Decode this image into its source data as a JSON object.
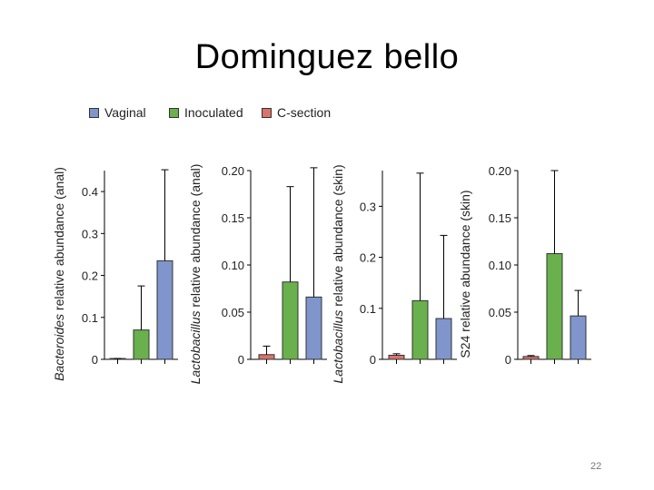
{
  "slide": {
    "title": "Dominguez bello",
    "page_number": "22"
  },
  "colors": {
    "Vaginal": "#7f95cb",
    "Inoculated": "#6ab04c",
    "C-section": "#d9736b"
  },
  "legend": [
    {
      "label": "Vaginal",
      "color": "#7f95cb"
    },
    {
      "label": "Inoculated",
      "color": "#6ab04c"
    },
    {
      "label": "C-section",
      "color": "#d9736b"
    }
  ],
  "chart_data": [
    {
      "type": "bar",
      "ylabel_italic": "Bacteroides",
      "ylabel_rest": " relative abundance (anal)",
      "ylim": [
        0,
        0.45
      ],
      "yticks": [
        0,
        0.1,
        0.2,
        0.3,
        0.4
      ],
      "ytick_labels": [
        "0",
        "0.1",
        "0.2",
        "0.3",
        "0.4"
      ],
      "categories": [
        "C-section",
        "Inoculated",
        "Vaginal"
      ],
      "values": [
        0.002,
        0.07,
        0.235
      ],
      "error_upper": [
        0.002,
        0.175,
        0.452
      ]
    },
    {
      "type": "bar",
      "ylabel_italic": "Lactobacillus",
      "ylabel_rest": " relative abundance (anal)",
      "ylim": [
        0,
        0.2
      ],
      "yticks": [
        0,
        0.05,
        0.1,
        0.15,
        0.2
      ],
      "ytick_labels": [
        "0",
        "0.05",
        "0.10",
        "0.15",
        "0.20"
      ],
      "categories": [
        "C-section",
        "Inoculated",
        "Vaginal"
      ],
      "values": [
        0.005,
        0.082,
        0.066
      ],
      "error_upper": [
        0.014,
        0.183,
        0.203
      ]
    },
    {
      "type": "bar",
      "ylabel_italic": "Lactobacillus",
      "ylabel_rest": " relative abundance (skin)",
      "ylim": [
        0,
        0.37
      ],
      "yticks": [
        0,
        0.1,
        0.2,
        0.3
      ],
      "ytick_labels": [
        "0",
        "0.1",
        "0.2",
        "0.3"
      ],
      "categories": [
        "C-section",
        "Inoculated",
        "Vaginal"
      ],
      "values": [
        0.008,
        0.115,
        0.08
      ],
      "error_upper": [
        0.011,
        0.365,
        0.243
      ]
    },
    {
      "type": "bar",
      "ylabel_italic": "",
      "ylabel_rest": "S24 relative abundance (skin)",
      "ylim": [
        0,
        0.2
      ],
      "yticks": [
        0,
        0.05,
        0.1,
        0.15,
        0.2
      ],
      "ytick_labels": [
        "0",
        "0.05",
        "0.10",
        "0.15",
        "0.20"
      ],
      "categories": [
        "C-section",
        "Inoculated",
        "Vaginal"
      ],
      "values": [
        0.003,
        0.112,
        0.046
      ],
      "error_upper": [
        0.004,
        0.2,
        0.073
      ]
    }
  ]
}
